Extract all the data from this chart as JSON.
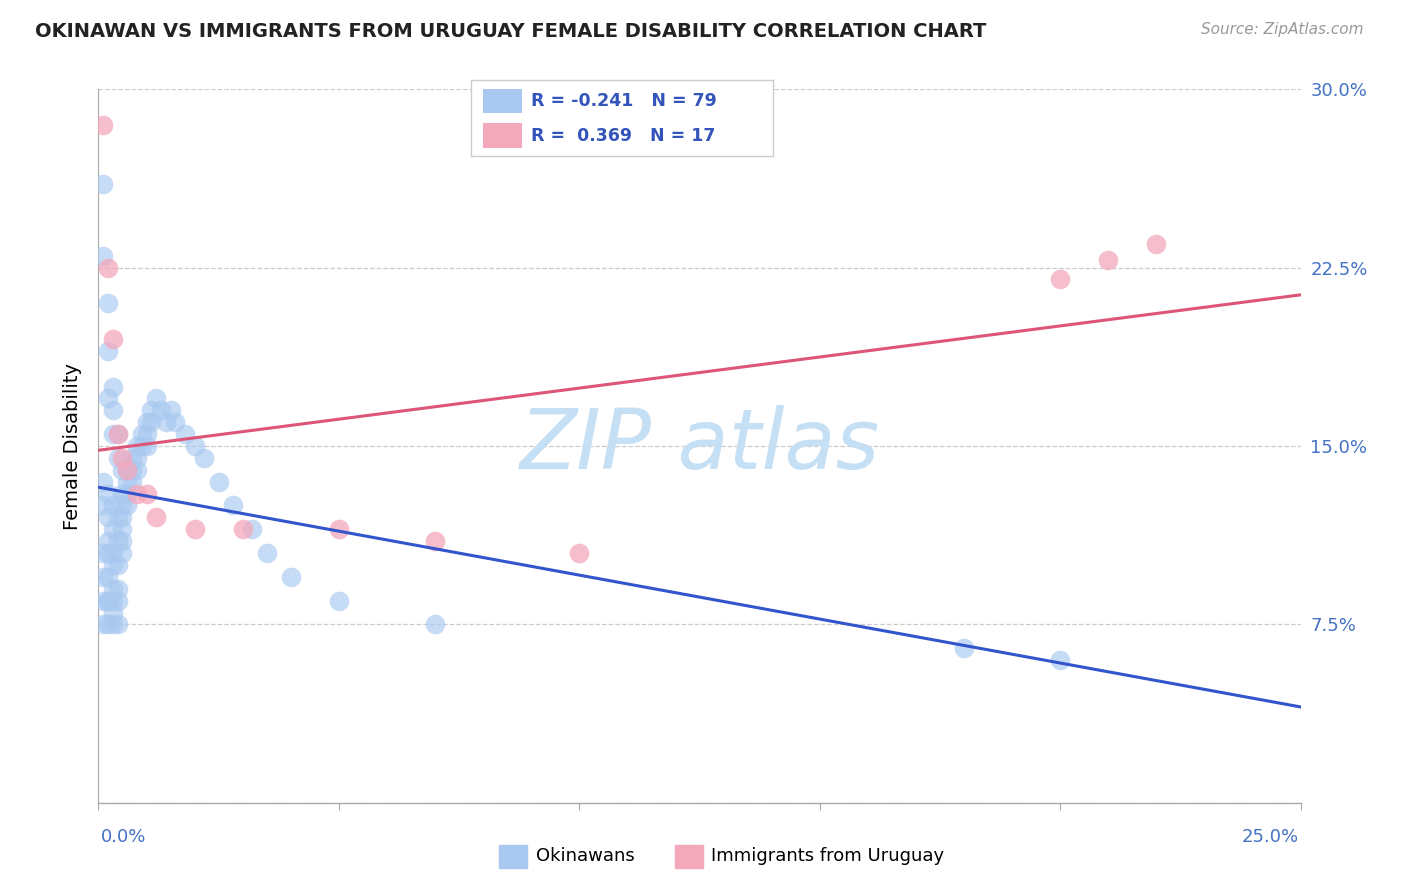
{
  "title": "OKINAWAN VS IMMIGRANTS FROM URUGUAY FEMALE DISABILITY CORRELATION CHART",
  "source": "Source: ZipAtlas.com",
  "ylabel": "Female Disability",
  "xlim": [
    0.0,
    0.25
  ],
  "ylim": [
    0.0,
    0.3
  ],
  "y_ticks": [
    0.0,
    0.075,
    0.15,
    0.225,
    0.3
  ],
  "y_tick_labels": [
    "",
    "7.5%",
    "15.0%",
    "22.5%",
    "30.0%"
  ],
  "x_tick_left": "0.0%",
  "x_tick_right": "25.0%",
  "blue_fill": "#a8c8f0",
  "pink_fill": "#f4a8bc",
  "blue_line": "#3355cc",
  "pink_line": "#dd5577",
  "grid_color": "#cccccc",
  "title_color": "#222222",
  "source_color": "#999999",
  "tick_label_color": "#4472c4",
  "legend_text_color": "#3355bb",
  "okinawan_x": [
    0.001,
    0.001,
    0.002,
    0.002,
    0.002,
    0.003,
    0.003,
    0.003,
    0.004,
    0.004,
    0.001,
    0.001,
    0.002,
    0.002,
    0.002,
    0.003,
    0.003,
    0.003,
    0.004,
    0.004,
    0.001,
    0.001,
    0.002,
    0.002,
    0.002,
    0.003,
    0.003,
    0.003,
    0.004,
    0.004,
    0.001,
    0.001,
    0.002,
    0.002,
    0.003,
    0.003,
    0.004,
    0.004,
    0.005,
    0.005,
    0.005,
    0.005,
    0.005,
    0.005,
    0.005,
    0.006,
    0.006,
    0.006,
    0.006,
    0.007,
    0.007,
    0.007,
    0.008,
    0.008,
    0.008,
    0.009,
    0.009,
    0.01,
    0.01,
    0.01,
    0.011,
    0.011,
    0.012,
    0.013,
    0.014,
    0.015,
    0.016,
    0.018,
    0.02,
    0.022,
    0.025,
    0.028,
    0.032,
    0.035,
    0.04,
    0.05,
    0.07,
    0.18,
    0.2
  ],
  "okinawan_y": [
    0.26,
    0.23,
    0.21,
    0.19,
    0.17,
    0.175,
    0.165,
    0.155,
    0.155,
    0.145,
    0.135,
    0.125,
    0.13,
    0.12,
    0.11,
    0.125,
    0.115,
    0.105,
    0.12,
    0.11,
    0.105,
    0.095,
    0.105,
    0.095,
    0.085,
    0.1,
    0.09,
    0.08,
    0.1,
    0.09,
    0.085,
    0.075,
    0.085,
    0.075,
    0.085,
    0.075,
    0.085,
    0.075,
    0.14,
    0.13,
    0.125,
    0.12,
    0.115,
    0.11,
    0.105,
    0.14,
    0.135,
    0.13,
    0.125,
    0.145,
    0.14,
    0.135,
    0.15,
    0.145,
    0.14,
    0.155,
    0.15,
    0.16,
    0.155,
    0.15,
    0.165,
    0.16,
    0.17,
    0.165,
    0.16,
    0.165,
    0.16,
    0.155,
    0.15,
    0.145,
    0.135,
    0.125,
    0.115,
    0.105,
    0.095,
    0.085,
    0.075,
    0.065,
    0.06
  ],
  "uruguay_x": [
    0.001,
    0.002,
    0.003,
    0.004,
    0.005,
    0.006,
    0.008,
    0.01,
    0.012,
    0.02,
    0.03,
    0.05,
    0.07,
    0.1,
    0.2,
    0.21,
    0.22
  ],
  "uruguay_y": [
    0.285,
    0.225,
    0.195,
    0.155,
    0.145,
    0.14,
    0.13,
    0.13,
    0.12,
    0.115,
    0.115,
    0.115,
    0.11,
    0.105,
    0.22,
    0.228,
    0.235
  ]
}
